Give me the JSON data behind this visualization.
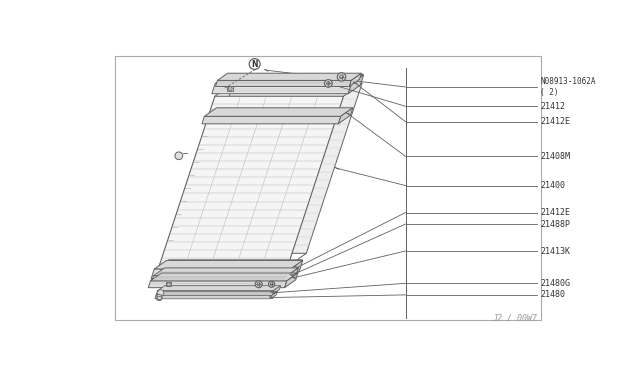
{
  "bg_color": "#ffffff",
  "line_color": "#606060",
  "text_color": "#333333",
  "watermark": "J2 / 00W7",
  "border": [
    0.07,
    0.04,
    0.93,
    0.96
  ],
  "parts_labels": [
    {
      "label": "N08913-1062A\n( 2)",
      "sy": 0.855,
      "is_N": true
    },
    {
      "label": "21412",
      "sy": 0.79
    },
    {
      "label": "21412E",
      "sy": 0.74
    },
    {
      "label": "21408M",
      "sy": 0.59
    },
    {
      "label": "21400",
      "sy": 0.49
    },
    {
      "label": "21412E",
      "sy": 0.4
    },
    {
      "label": "21488P",
      "sy": 0.36
    },
    {
      "label": "21413K",
      "sy": 0.265
    },
    {
      "label": "21480G",
      "sy": 0.155
    },
    {
      "label": "21480",
      "sy": 0.115
    }
  ]
}
